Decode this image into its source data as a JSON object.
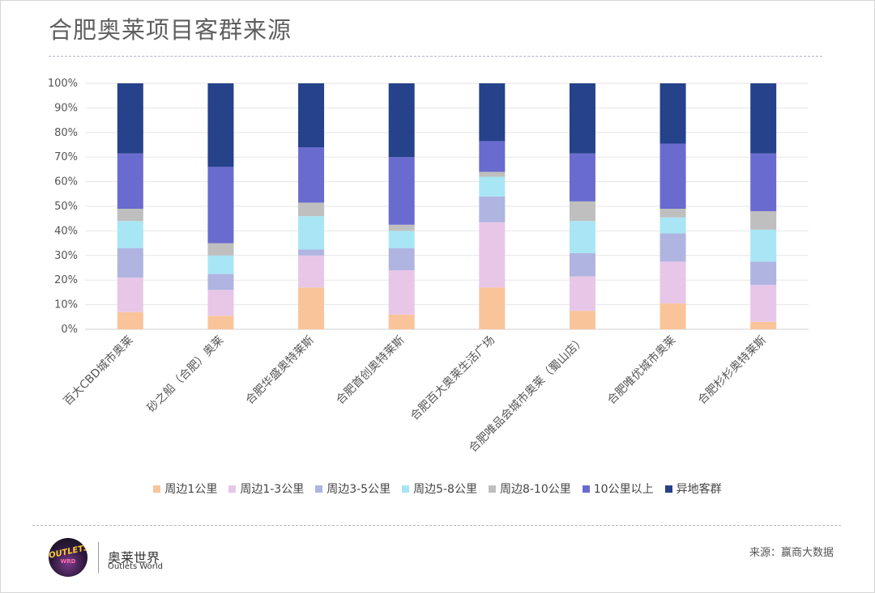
{
  "title": "合肥奥莱项目客群来源",
  "brand": {
    "name_cn": "奥莱世界",
    "name_en": "Outlets World",
    "logo_text": "OUTLETS",
    "logo_sub": "WRD"
  },
  "source": "来源：赢商大数据",
  "chart_data": {
    "type": "bar",
    "stacked": true,
    "ylim": [
      0,
      100
    ],
    "yticks": [
      "0%",
      "10%",
      "20%",
      "30%",
      "40%",
      "50%",
      "60%",
      "70%",
      "80%",
      "90%",
      "100%"
    ],
    "grid": true,
    "legend_position": "bottom",
    "categories": [
      "百大CBD城市奥莱",
      "砂之船（合肥）奥莱",
      "合肥华盛奥特莱斯",
      "合肥首创奥特莱斯",
      "合肥百大奥莱生活广场",
      "合肥唯品会城市奥莱（蜀山店）",
      "合肥唯优城市奥莱",
      "合肥杉杉奥特莱斯"
    ],
    "series": [
      {
        "name": "周边1公里",
        "color": "#f9c49a",
        "values": [
          7,
          5.5,
          17,
          6,
          17,
          7.5,
          10.5,
          3
        ]
      },
      {
        "name": "周边1-3公里",
        "color": "#e8c6e8",
        "values": [
          14,
          10.5,
          13,
          18,
          26.5,
          14,
          17,
          15
        ]
      },
      {
        "name": "周边3-5公里",
        "color": "#afb4e0",
        "values": [
          12,
          6.5,
          2.5,
          9,
          10.5,
          9.5,
          11.5,
          9.5
        ]
      },
      {
        "name": "周边5-8公里",
        "color": "#a8e6f5",
        "values": [
          11,
          7.5,
          13.5,
          7,
          8,
          13,
          6.5,
          13
        ]
      },
      {
        "name": "周边8-10公里",
        "color": "#bfbfbf",
        "values": [
          5,
          5,
          5.5,
          2.5,
          2,
          8,
          3.5,
          7.5
        ]
      },
      {
        "name": "10公里以上",
        "color": "#6a6bcf",
        "values": [
          22.5,
          31,
          22.5,
          27.5,
          12.5,
          19.5,
          26.5,
          23.5
        ]
      },
      {
        "name": "异地客群",
        "color": "#25428a",
        "values": [
          28.5,
          34,
          26,
          30,
          23.5,
          28.5,
          24.5,
          28.5
        ]
      }
    ]
  }
}
